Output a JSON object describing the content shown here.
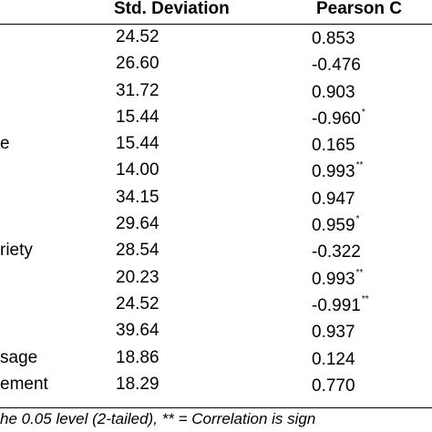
{
  "table": {
    "headers": {
      "std_dev": "Std. Deviation",
      "pearson": "Pearson C"
    },
    "rows": [
      {
        "label": "",
        "std_dev": "24.52",
        "pearson": "0.853",
        "sig": ""
      },
      {
        "label": "",
        "std_dev": "26.60",
        "pearson": "-0.476",
        "sig": ""
      },
      {
        "label": "",
        "std_dev": "31.72",
        "pearson": "0.903",
        "sig": ""
      },
      {
        "label": "",
        "std_dev": "15.44",
        "pearson": "-0.960",
        "sig": "*"
      },
      {
        "label": "e",
        "std_dev": "15.44",
        "pearson": "0.165",
        "sig": ""
      },
      {
        "label": "",
        "std_dev": "14.00",
        "pearson": "0.993",
        "sig": "**"
      },
      {
        "label": "",
        "std_dev": "34.15",
        "pearson": "0.947",
        "sig": ""
      },
      {
        "label": "",
        "std_dev": "29.64",
        "pearson": "0.959",
        "sig": "*"
      },
      {
        "label": "riety",
        "std_dev": "28.54",
        "pearson": "-0.322",
        "sig": ""
      },
      {
        "label": "",
        "std_dev": "20.23",
        "pearson": "0.993",
        "sig": "**"
      },
      {
        "label": "",
        "std_dev": "24.52",
        "pearson": "-0.991",
        "sig": "**"
      },
      {
        "label": "",
        "std_dev": "39.64",
        "pearson": "0.937",
        "sig": ""
      },
      {
        "label": "sage",
        "std_dev": "18.86",
        "pearson": "0.124",
        "sig": ""
      },
      {
        "label": "ement",
        "std_dev": "18.29",
        "pearson": "0.770",
        "sig": ""
      }
    ],
    "footnote": "he 0.05 level (2-tailed), ** = Correlation is sign"
  }
}
